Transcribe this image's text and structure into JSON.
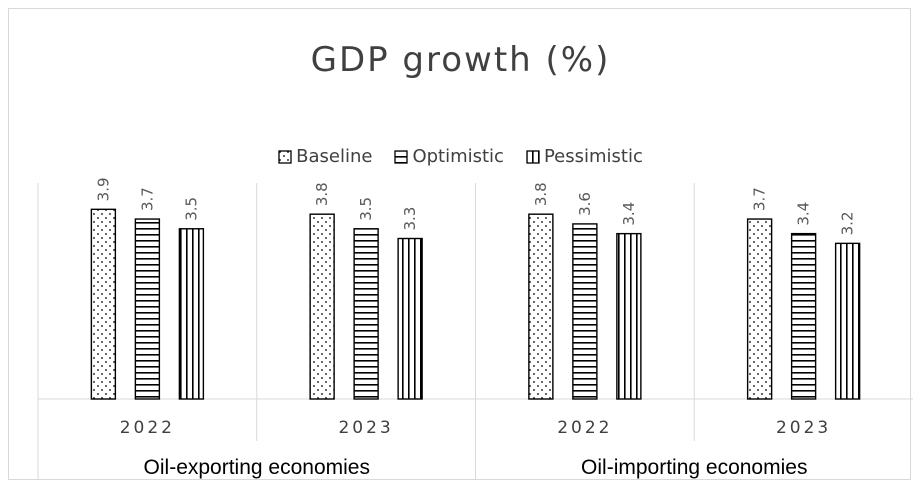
{
  "chart_data": {
    "type": "bar",
    "title": "GDP growth (%)",
    "xlabel": "",
    "ylabel": "",
    "ylim": [
      0,
      4.4
    ],
    "grid": false,
    "legend_position": "top",
    "groups": [
      {
        "label": "Oil-exporting economies",
        "categories": [
          "2022",
          "2023"
        ]
      },
      {
        "label": "Oil-importing economies",
        "categories": [
          "2022",
          "2023"
        ]
      }
    ],
    "categories": [
      "2022",
      "2023",
      "2022",
      "2023"
    ],
    "series": [
      {
        "name": "Baseline",
        "pattern": "dots",
        "values": [
          3.9,
          3.8,
          3.8,
          3.7
        ]
      },
      {
        "name": "Optimistic",
        "pattern": "horizontal",
        "values": [
          3.7,
          3.5,
          3.6,
          3.4
        ]
      },
      {
        "name": "Pessimistic",
        "pattern": "vertical",
        "values": [
          3.5,
          3.3,
          3.4,
          3.2
        ]
      }
    ],
    "colors": {
      "outline": "#000000",
      "axis": "#d9d9d9",
      "text": "#404040",
      "label": "#595959"
    }
  }
}
